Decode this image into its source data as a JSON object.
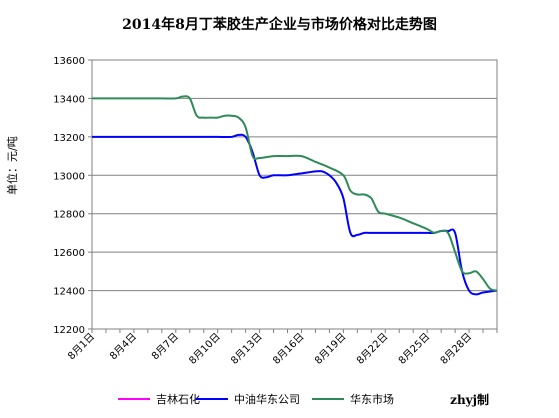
{
  "chart_data": {
    "type": "line",
    "title": "2014年8月丁苯胶生产企业与市场价格对比走势图",
    "ylabel": "单位：元/吨",
    "xlabel": "",
    "ylim": [
      12200,
      13600
    ],
    "yticks": [
      12200,
      12400,
      12600,
      12800,
      13000,
      13200,
      13400,
      13600
    ],
    "x_tick_labels": [
      "8月1日",
      "8月4日",
      "8月7日",
      "8月10日",
      "8月13日",
      "8月16日",
      "8月19日",
      "8月22日",
      "8月25日",
      "8月28日"
    ],
    "x_tick_days": [
      1,
      4,
      7,
      10,
      13,
      16,
      19,
      22,
      25,
      28
    ],
    "xlim": [
      1,
      30
    ],
    "grid": "horizontal",
    "legend_position": "bottom",
    "series": [
      {
        "name": "吉林石化",
        "color": "#ff00ff",
        "x": [],
        "y": []
      },
      {
        "name": "中油华东公司",
        "color": "#0000ff",
        "x": [
          1,
          2,
          3,
          4,
          5,
          6,
          7,
          8,
          9,
          10,
          11,
          11.5,
          12,
          12.5,
          13,
          13.5,
          14,
          15,
          16,
          17,
          17.5,
          18,
          18.5,
          19,
          19.5,
          20,
          20.5,
          21,
          22,
          23,
          24,
          25,
          25.5,
          26,
          26.5,
          27,
          27.5,
          28,
          28.5,
          29,
          30
        ],
        "y": [
          13200,
          13200,
          13200,
          13200,
          13200,
          13200,
          13200,
          13200,
          13200,
          13200,
          13200,
          13210,
          13200,
          13120,
          13000,
          12990,
          13000,
          13000,
          13010,
          13020,
          13020,
          13000,
          12960,
          12880,
          12700,
          12690,
          12700,
          12700,
          12700,
          12700,
          12700,
          12700,
          12700,
          12710,
          12710,
          12700,
          12500,
          12400,
          12380,
          12390,
          12400
        ]
      },
      {
        "name": "华东市场",
        "color": "#2e8b57",
        "x": [
          1,
          2,
          3,
          4,
          5,
          6,
          7,
          7.5,
          8,
          8.5,
          9,
          9.5,
          10,
          10.5,
          11,
          11.5,
          12,
          12.5,
          13,
          14,
          15,
          16,
          17,
          18,
          19,
          19.5,
          20,
          20.5,
          21,
          21.5,
          22,
          23,
          24,
          25,
          25.5,
          26,
          26.5,
          27,
          27.5,
          28,
          28.5,
          29,
          29.5,
          30
        ],
        "y": [
          13400,
          13400,
          13400,
          13400,
          13400,
          13400,
          13400,
          13410,
          13400,
          13310,
          13300,
          13300,
          13300,
          13310,
          13310,
          13300,
          13250,
          13100,
          13090,
          13100,
          13100,
          13100,
          13070,
          13040,
          13000,
          12920,
          12900,
          12900,
          12880,
          12810,
          12800,
          12780,
          12750,
          12720,
          12700,
          12710,
          12700,
          12600,
          12500,
          12490,
          12500,
          12460,
          12410,
          12400
        ]
      }
    ]
  },
  "credit": "zhyj制"
}
